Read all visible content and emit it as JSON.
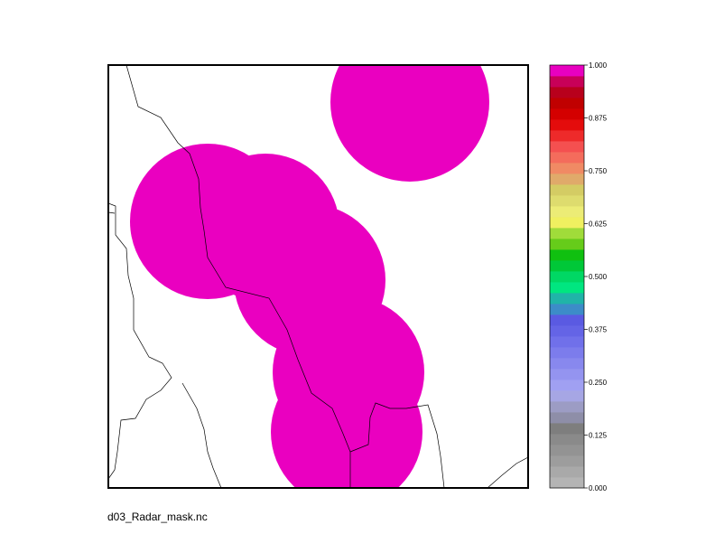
{
  "caption": "d03_Radar_mask.nc",
  "chart_data": {
    "type": "heatmap",
    "title": "",
    "colorbar": {
      "range": [
        0,
        1
      ],
      "tick_labels": [
        "1.000",
        "0.875",
        "0.750",
        "0.625",
        "0.500",
        "0.375",
        "0.250",
        "0.125",
        "0.000"
      ],
      "tick_values": [
        1.0,
        0.875,
        0.75,
        0.625,
        0.5,
        0.375,
        0.25,
        0.125,
        0.0
      ],
      "colors": [
        "#b4b4b4",
        "#a9a9a9",
        "#9d9d9d",
        "#939393",
        "#8a8a8a",
        "#7e7e7e",
        "#8e8ea8",
        "#9c9cc4",
        "#a6a6e4",
        "#a0a0f2",
        "#9494f0",
        "#8888ee",
        "#7c7cec",
        "#7070ea",
        "#6464e6",
        "#5a5ae2",
        "#3c8cc8",
        "#20b4a8",
        "#00e680",
        "#00d864",
        "#00c838",
        "#10c010",
        "#66cc1a",
        "#a0dc3a",
        "#f0f060",
        "#ecec76",
        "#dedc6e",
        "#d4cc64",
        "#e0aa6a",
        "#f08a64",
        "#f46c5c",
        "#f45050",
        "#ee2a2a",
        "#e40c0c",
        "#d40000",
        "#c00000",
        "#b8001c",
        "#c80058",
        "#e800c0"
      ]
    },
    "mask_color": "#ea00c0",
    "mask_value": 1.0
  }
}
